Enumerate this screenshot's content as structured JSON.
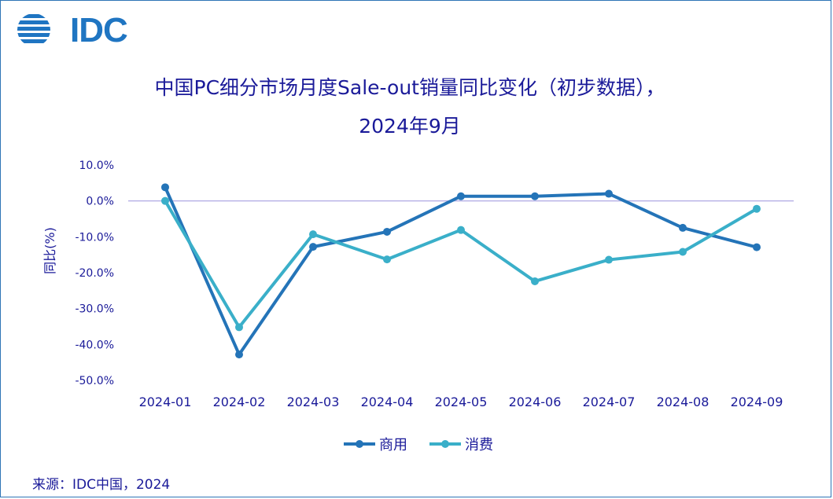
{
  "logo": {
    "text": "IDC"
  },
  "source": "来源：IDC中国，2024",
  "colors": {
    "text": "#1a1a99",
    "commercial": "#2474b8",
    "consumer": "#3aafc9",
    "zero_line": "#b9b3e6"
  },
  "chart_data": {
    "type": "line",
    "title": "中国PC细分市场月度Sale-out销量同比变化（初步数据），",
    "subtitle": "2024年9月",
    "xlabel": "",
    "ylabel": "同比(%)",
    "ylim": [
      -50,
      10
    ],
    "yticks": [
      10,
      0,
      -10,
      -20,
      -30,
      -40,
      -50
    ],
    "ytick_labels": [
      "10.0%",
      "0.0%",
      "-10.0%",
      "-20.0%",
      "-30.0%",
      "-40.0%",
      "-50.0%"
    ],
    "categories": [
      "2024-01",
      "2024-02",
      "2024-03",
      "2024-04",
      "2024-05",
      "2024-06",
      "2024-07",
      "2024-08",
      "2024-09"
    ],
    "grid": false,
    "legend": "bottom",
    "series": [
      {
        "name": "商用",
        "color": "#2474b8",
        "values": [
          3.8,
          -42.8,
          -12.8,
          -8.6,
          1.3,
          1.3,
          2.0,
          -7.5,
          -12.9
        ]
      },
      {
        "name": "消费",
        "color": "#3aafc9",
        "values": [
          0.0,
          -35.2,
          -9.3,
          -16.3,
          -8.1,
          -22.4,
          -16.4,
          -14.2,
          -2.2
        ]
      }
    ]
  }
}
